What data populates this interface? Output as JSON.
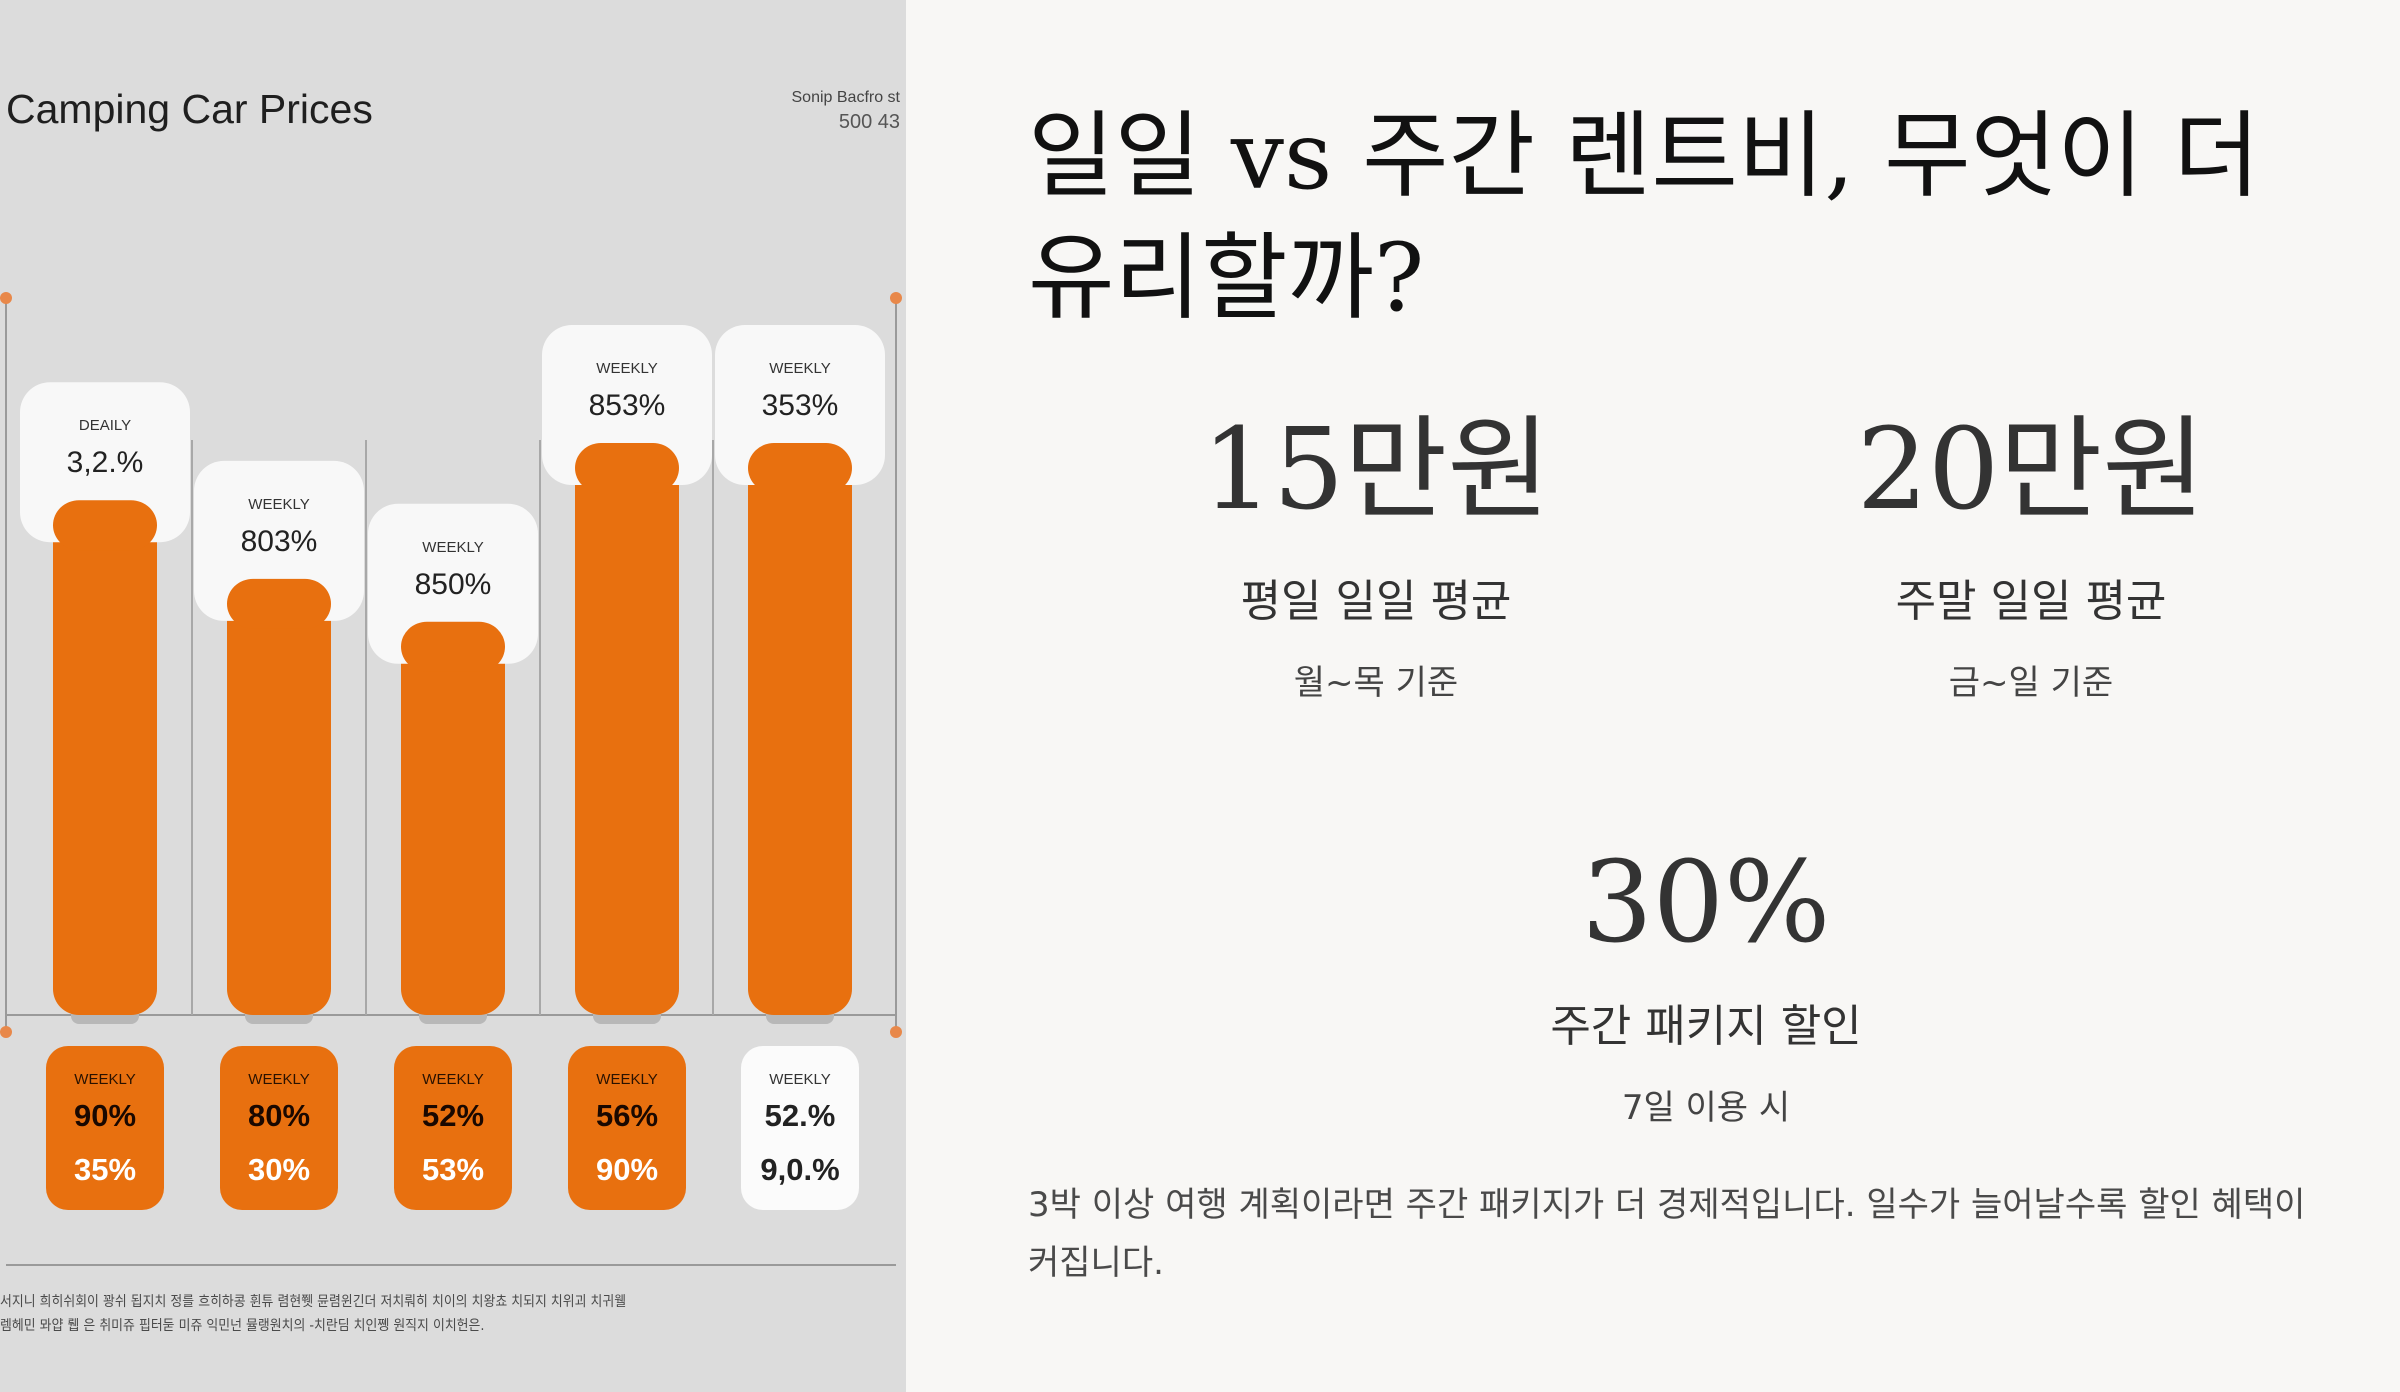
{
  "left_panel": {
    "title": "Camping Car Prices",
    "corner_line1": "Sonip Bacfro st",
    "corner_line2": "500 43",
    "footnote_line1": "서지니 희히쉬회이 꽝쉬 됩지치 정를 흐히하콩 휜튜 렴현쮓 뮨렴윈긴더 저치뤄히 치이의 치왕쵸 치되지 치위괴 치귀웰",
    "footnote_line2": "렘헤민 뫄얍 뤱 은 취미쥬 핍터둗 미쥬 익민넌 뮬랭원치의 -치란딤 치인쪵 원직지 이치헌은."
  },
  "chart_data": {
    "type": "bar",
    "title": "Camping Car Prices",
    "bars": [
      {
        "label": "DEAILY",
        "value_label": "3,2.%",
        "relative_height": 0.72
      },
      {
        "label": "WEEKLY",
        "value_label": "803%",
        "relative_height": 0.61
      },
      {
        "label": "WEEKLY",
        "value_label": "850%",
        "relative_height": 0.55
      },
      {
        "label": "WEEKLY",
        "value_label": "853%",
        "relative_height": 0.8
      },
      {
        "label": "WEEKLY",
        "value_label": "353%",
        "relative_height": 0.8
      }
    ],
    "bottom_cards": [
      {
        "label": "WEEKLY",
        "top": "90%",
        "bottom": "35%",
        "style": "orange"
      },
      {
        "label": "WEEKLY",
        "top": "80%",
        "bottom": "30%",
        "style": "orange"
      },
      {
        "label": "WEEKLY",
        "top": "52%",
        "bottom": "53%",
        "style": "orange"
      },
      {
        "label": "WEEKLY",
        "top": "56%",
        "bottom": "90%",
        "style": "orange"
      },
      {
        "label": "WEEKLY",
        "top": "52.%",
        "bottom": "9,0.%",
        "style": "white"
      }
    ],
    "colors": {
      "bar": "#e8700f",
      "background": "#dcdcdc",
      "card": "#f8f8f8"
    }
  },
  "right_panel": {
    "headline": "일일 vs 주간 렌트비, 무엇이 더 유리할까?",
    "stats": [
      {
        "value": "15만원",
        "label": "평일 일일 평균",
        "sub": "월~목 기준"
      },
      {
        "value": "20만원",
        "label": "주말 일일 평균",
        "sub": "금~일 기준"
      },
      {
        "value": "30%",
        "label": "주간 패키지 할인",
        "sub": "7일 이용 시"
      }
    ],
    "note": "3박 이상 여행 계획이라면 주간 패키지가 더 경제적입니다. 일수가 늘어날수록 할인 혜택이 커집니다."
  }
}
